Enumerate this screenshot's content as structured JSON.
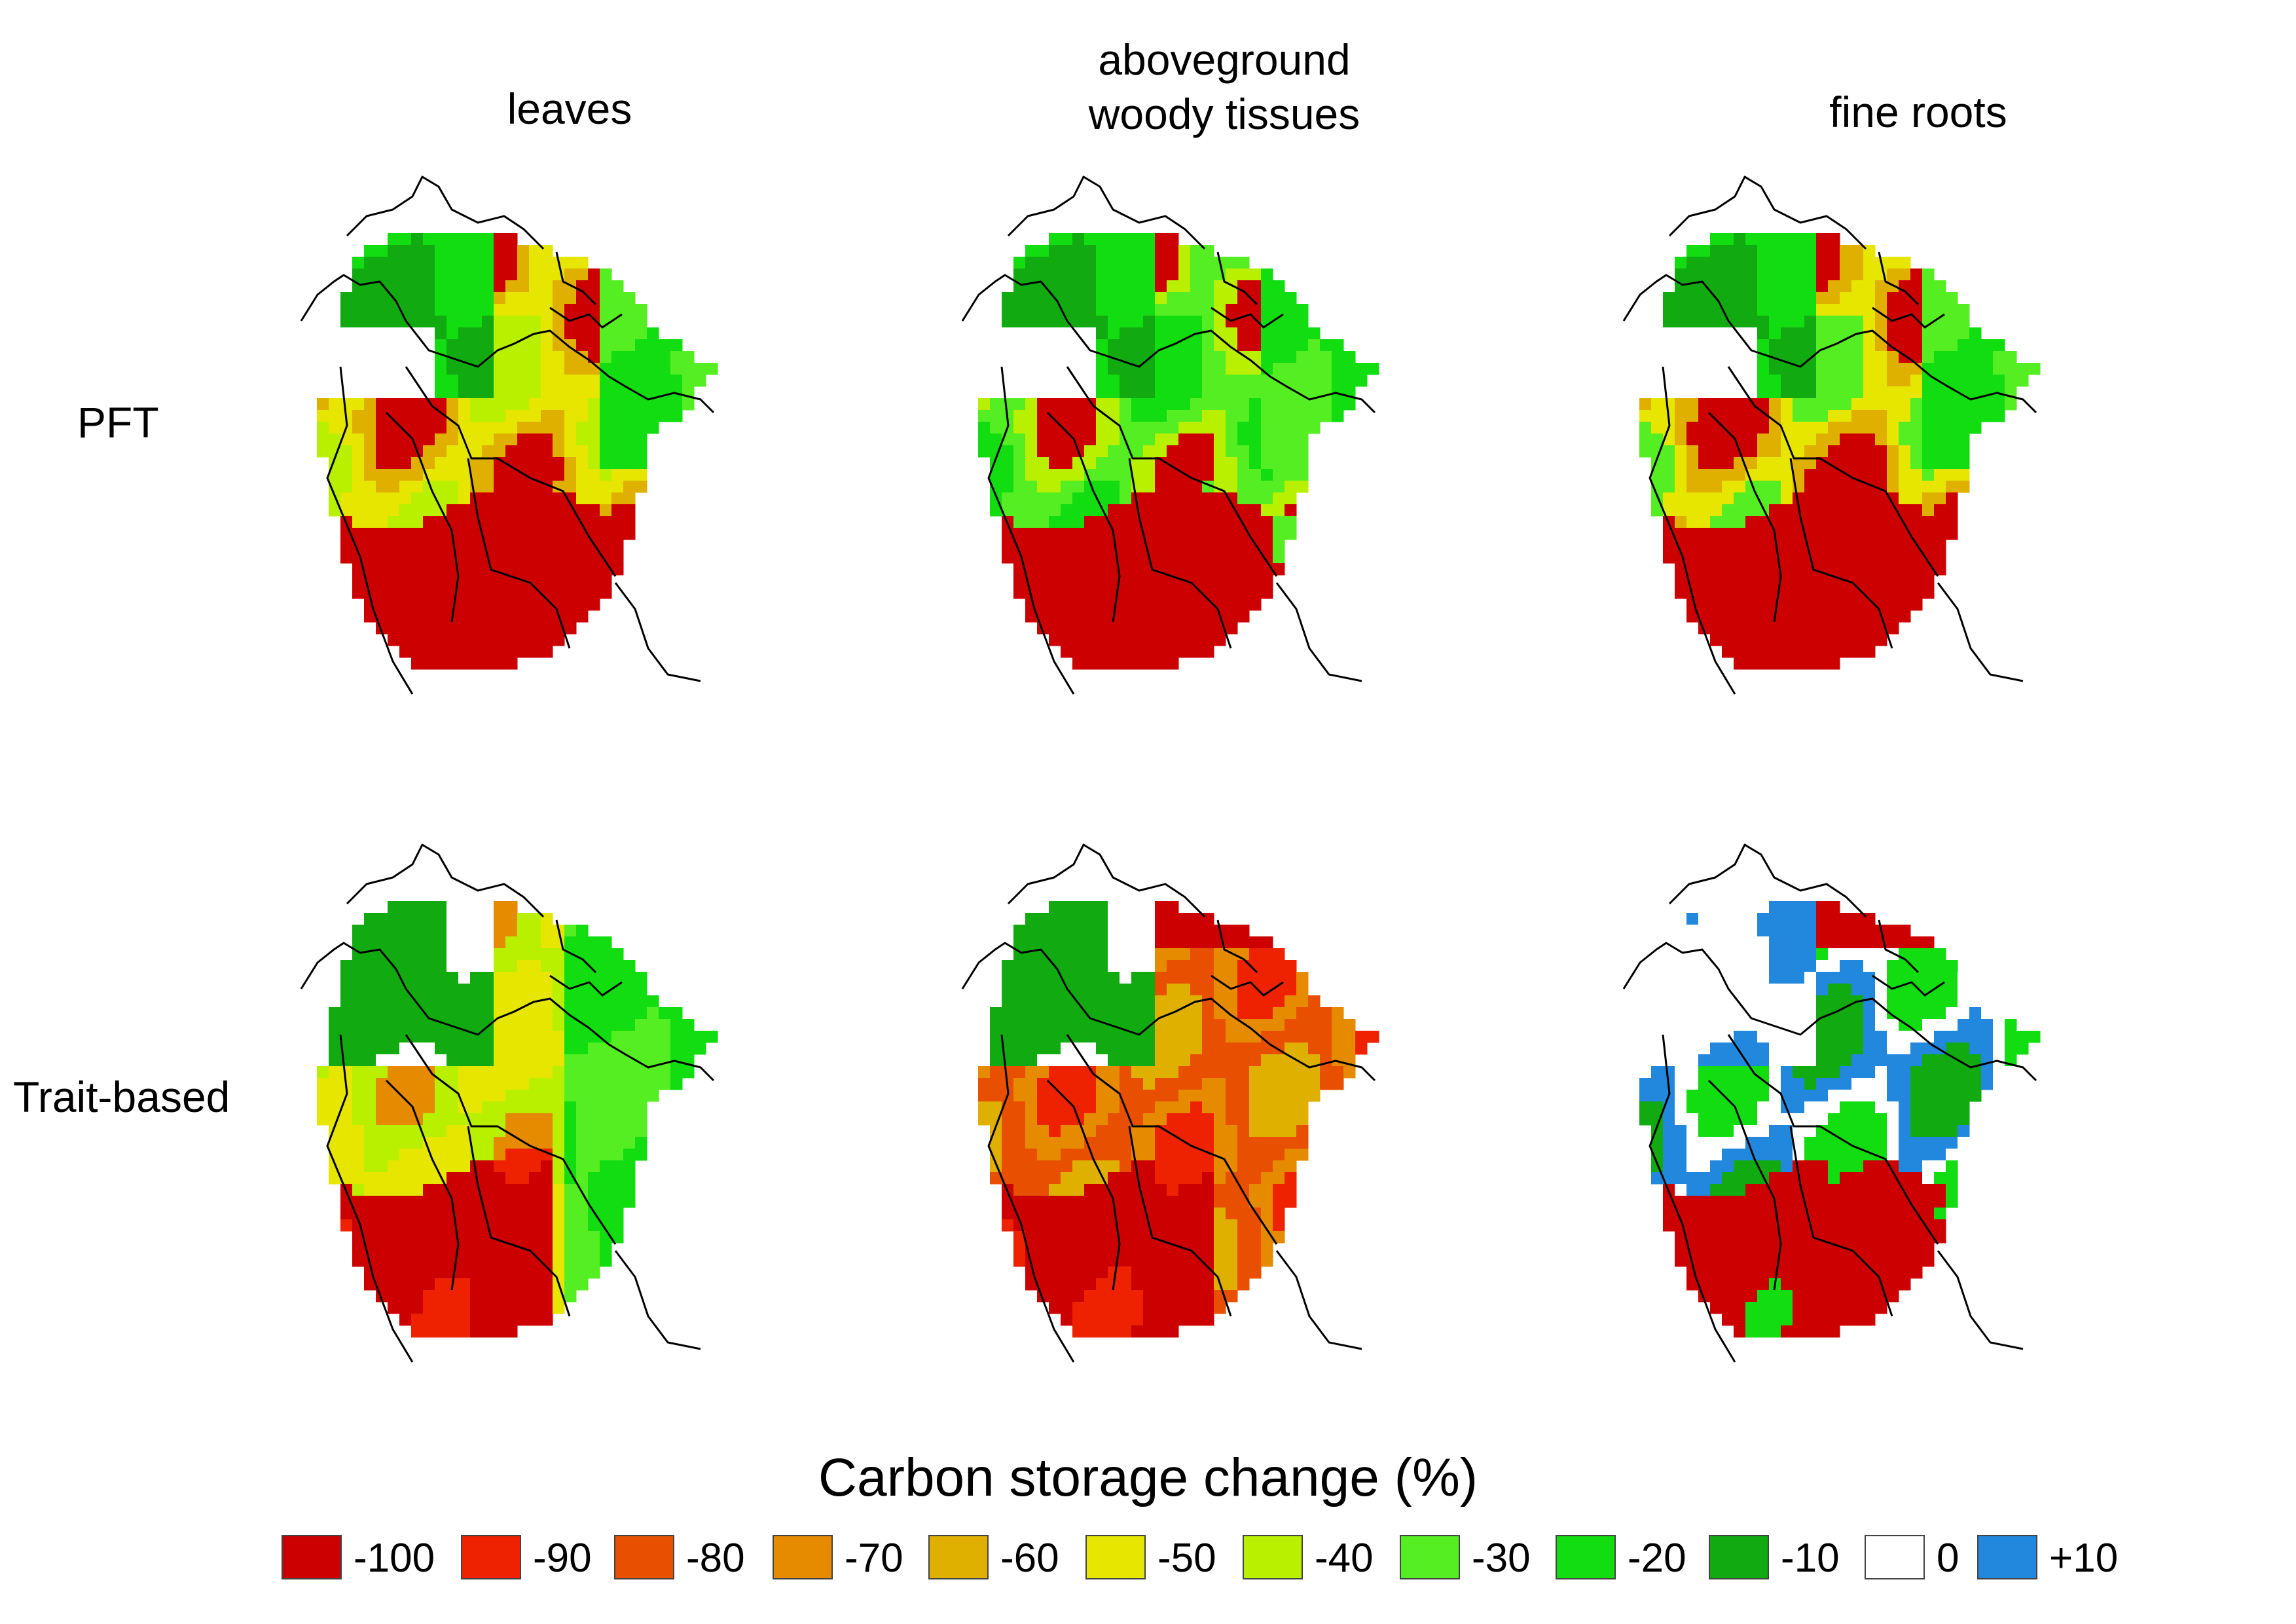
{
  "columns": [
    {
      "title_lines": [
        "leaves"
      ]
    },
    {
      "title_lines": [
        "aboveground",
        "woody tissues"
      ]
    },
    {
      "title_lines": [
        "fine roots"
      ]
    }
  ],
  "rows": [
    {
      "label": "PFT"
    },
    {
      "label": "Trait-based"
    }
  ],
  "panels": [
    {
      "row": "PFT",
      "column": "leaves",
      "pattern": "pft-leaves"
    },
    {
      "row": "PFT",
      "column": "aboveground woody tissues",
      "pattern": "pft-wood"
    },
    {
      "row": "PFT",
      "column": "fine roots",
      "pattern": "pft-roots"
    },
    {
      "row": "Trait-based",
      "column": "leaves",
      "pattern": "trait-leaves"
    },
    {
      "row": "Trait-based",
      "column": "aboveground woody tissues",
      "pattern": "trait-wood"
    },
    {
      "row": "Trait-based",
      "column": "fine roots",
      "pattern": "trait-roots"
    }
  ],
  "legend": {
    "title": "Carbon storage change (%)",
    "items": [
      {
        "label": "-100",
        "color": "#cc0000"
      },
      {
        "label": "-90",
        "color": "#ee2200"
      },
      {
        "label": "-80",
        "color": "#e85000"
      },
      {
        "label": "-70",
        "color": "#e68a00"
      },
      {
        "label": "-60",
        "color": "#e0b000"
      },
      {
        "label": "-50",
        "color": "#e6e600"
      },
      {
        "label": "-40",
        "color": "#b8f000"
      },
      {
        "label": "-30",
        "color": "#55ee22"
      },
      {
        "label": "-20",
        "color": "#11dd11"
      },
      {
        "label": "-10",
        "color": "#11aa11"
      },
      {
        "label": "0",
        "color": "#ffffff"
      },
      {
        "label": "+10",
        "color": "#2288dd"
      }
    ]
  }
}
